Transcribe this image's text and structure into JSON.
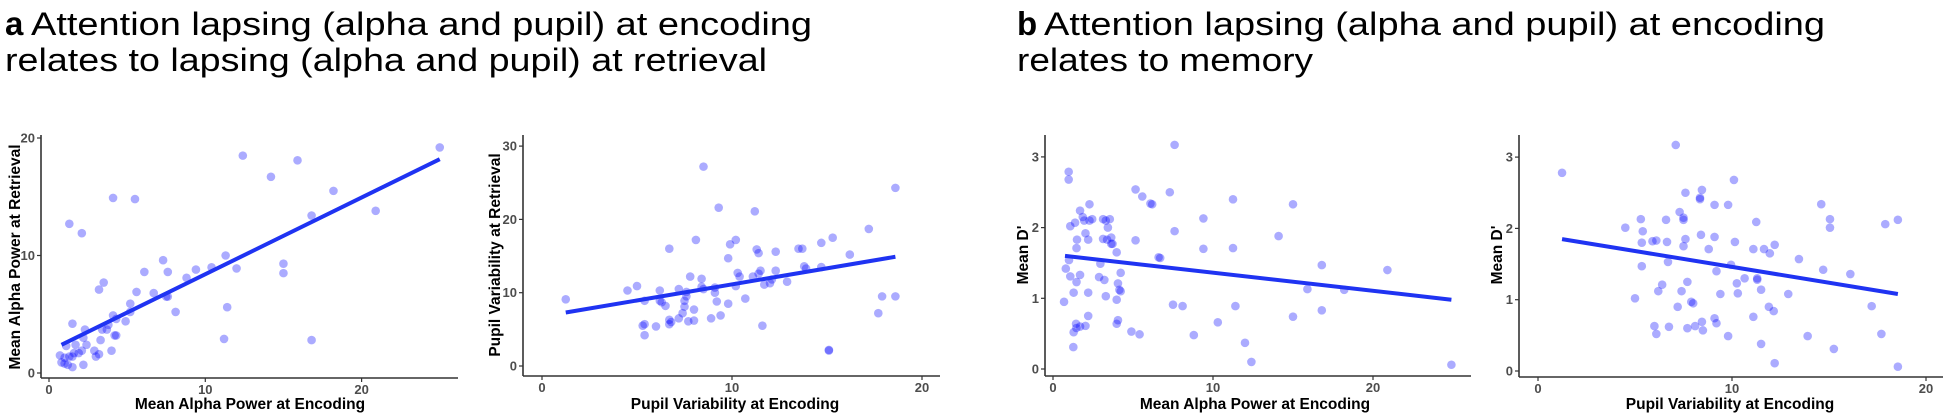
{
  "panel_a": {
    "letter": "a",
    "title_line1": "Attention lapsing (alpha and pupil) at encoding",
    "title_line2": "relates to lapsing (alpha and pupil) at retrieval"
  },
  "panel_b": {
    "letter": "b",
    "title_line1": "Attention lapsing (alpha and pupil) at encoding",
    "title_line2": "relates to memory"
  },
  "colors": {
    "points": "#0000ff",
    "fit_line": "#1f33f2",
    "axis": "#333333"
  },
  "chart_data": [
    {
      "type": "scatter",
      "id": "a1",
      "xlabel": "Mean Alpha Power at Encoding",
      "ylabel": "Mean Alpha Power at Retrieval",
      "xlim": [
        -0.5,
        27
      ],
      "ylim": [
        -0.4,
        20.6
      ],
      "xticks": [
        "0",
        "10",
        "20"
      ],
      "xtick_values": [
        0,
        10,
        20
      ],
      "yticks": [
        "0",
        "10",
        "20"
      ],
      "ytick_values": [
        0,
        10,
        20
      ],
      "fit_line": [
        [
          0.8,
          2.4
        ],
        [
          25.0,
          18.2
        ]
      ],
      "points": [
        [
          12.4,
          18.5
        ],
        [
          15.9,
          18.1
        ],
        [
          14.2,
          16.7
        ],
        [
          4.1,
          14.9
        ],
        [
          5.5,
          14.8
        ],
        [
          18.2,
          15.5
        ],
        [
          20.9,
          13.8
        ],
        [
          16.8,
          13.4
        ],
        [
          1.3,
          12.7
        ],
        [
          2.1,
          11.9
        ],
        [
          11.3,
          10.0
        ],
        [
          7.3,
          9.6
        ],
        [
          10.4,
          9.0
        ],
        [
          12.0,
          8.9
        ],
        [
          15.0,
          9.3
        ],
        [
          15.0,
          8.5
        ],
        [
          9.4,
          8.8
        ],
        [
          6.1,
          8.6
        ],
        [
          7.6,
          8.6
        ],
        [
          8.8,
          8.1
        ],
        [
          3.5,
          7.7
        ],
        [
          3.2,
          7.1
        ],
        [
          5.6,
          6.9
        ],
        [
          6.7,
          6.8
        ],
        [
          7.5,
          6.5
        ],
        [
          7.6,
          6.5
        ],
        [
          8.1,
          5.2
        ],
        [
          11.4,
          5.6
        ],
        [
          5.2,
          5.9
        ],
        [
          5.2,
          5.2
        ],
        [
          4.9,
          4.4
        ],
        [
          4.1,
          4.9
        ],
        [
          4.3,
          4.6
        ],
        [
          3.8,
          4.1
        ],
        [
          3.4,
          3.7
        ],
        [
          3.7,
          3.7
        ],
        [
          2.3,
          3.7
        ],
        [
          1.5,
          4.2
        ],
        [
          4.2,
          3.2
        ],
        [
          4.3,
          3.2
        ],
        [
          3.3,
          2.8
        ],
        [
          2.2,
          3.0
        ],
        [
          2.4,
          2.4
        ],
        [
          1.7,
          2.4
        ],
        [
          1.1,
          2.3
        ],
        [
          11.2,
          2.9
        ],
        [
          16.8,
          2.8
        ],
        [
          4.0,
          1.9
        ],
        [
          2.9,
          1.9
        ],
        [
          3.2,
          1.6
        ],
        [
          3.0,
          1.4
        ],
        [
          2.1,
          1.9
        ],
        [
          1.9,
          1.7
        ],
        [
          1.6,
          1.7
        ],
        [
          1.5,
          1.4
        ],
        [
          1.3,
          1.4
        ],
        [
          0.7,
          1.5
        ],
        [
          1.0,
          1.3
        ],
        [
          0.8,
          0.9
        ],
        [
          1.0,
          0.8
        ],
        [
          1.2,
          0.7
        ],
        [
          1.5,
          0.5
        ],
        [
          2.2,
          0.7
        ],
        [
          25.0,
          19.2
        ]
      ]
    },
    {
      "type": "scatter",
      "id": "a2",
      "xlabel": "Pupil Variability at Encoding",
      "ylabel": "Pupil Variability at Retrieval",
      "xlim": [
        -1,
        21
      ],
      "ylim": [
        -1.5,
        31.5
      ],
      "xticks": [
        "0",
        "10",
        "20"
      ],
      "xtick_values": [
        0,
        10,
        20
      ],
      "yticks": [
        "0",
        "10",
        "20",
        "30"
      ],
      "ytick_values": [
        0,
        10,
        20,
        30
      ],
      "fit_line": [
        [
          1.25,
          7.3
        ],
        [
          18.6,
          14.9
        ]
      ],
      "points": [
        [
          1.25,
          9.1
        ],
        [
          4.5,
          10.3
        ],
        [
          5.0,
          10.9
        ],
        [
          5.4,
          8.9
        ],
        [
          5.3,
          5.5
        ],
        [
          5.4,
          5.7
        ],
        [
          5.4,
          4.2
        ],
        [
          6.0,
          5.4
        ],
        [
          6.2,
          10.3
        ],
        [
          6.2,
          8.9
        ],
        [
          6.3,
          8.7
        ],
        [
          6.5,
          8.2
        ],
        [
          6.7,
          16.0
        ],
        [
          6.7,
          6.3
        ],
        [
          6.7,
          5.7
        ],
        [
          6.8,
          6.0
        ],
        [
          7.2,
          10.5
        ],
        [
          7.2,
          6.5
        ],
        [
          7.4,
          7.2
        ],
        [
          7.5,
          8.1
        ],
        [
          7.5,
          8.9
        ],
        [
          7.6,
          9.5
        ],
        [
          7.6,
          10.1
        ],
        [
          7.7,
          6.1
        ],
        [
          7.8,
          12.2
        ],
        [
          8.0,
          6.2
        ],
        [
          8.0,
          7.7
        ],
        [
          8.1,
          17.2
        ],
        [
          8.4,
          11.9
        ],
        [
          8.4,
          10.8
        ],
        [
          8.5,
          27.2
        ],
        [
          8.5,
          10.5
        ],
        [
          8.9,
          6.5
        ],
        [
          9.1,
          10.7
        ],
        [
          9.1,
          10.0
        ],
        [
          9.2,
          8.8
        ],
        [
          9.3,
          21.6
        ],
        [
          9.4,
          6.9
        ],
        [
          9.8,
          14.7
        ],
        [
          9.8,
          8.5
        ],
        [
          9.9,
          16.6
        ],
        [
          10.2,
          17.2
        ],
        [
          10.2,
          10.9
        ],
        [
          10.3,
          12.7
        ],
        [
          10.4,
          12.2
        ],
        [
          10.7,
          9.2
        ],
        [
          11.1,
          12.2
        ],
        [
          11.2,
          21.1
        ],
        [
          11.3,
          15.9
        ],
        [
          11.4,
          15.4
        ],
        [
          11.4,
          12.6
        ],
        [
          11.5,
          13.0
        ],
        [
          11.6,
          5.5
        ],
        [
          11.7,
          11.1
        ],
        [
          12.0,
          11.3
        ],
        [
          12.1,
          11.8
        ],
        [
          12.3,
          15.6
        ],
        [
          12.3,
          13.0
        ],
        [
          12.9,
          11.5
        ],
        [
          13.5,
          16.0
        ],
        [
          13.9,
          13.3
        ],
        [
          14.7,
          16.8
        ],
        [
          18.6,
          24.3
        ],
        [
          17.2,
          18.7
        ],
        [
          15.3,
          17.5
        ],
        [
          16.2,
          15.2
        ],
        [
          13.8,
          13.6
        ],
        [
          14.7,
          13.5
        ],
        [
          17.9,
          9.5
        ],
        [
          18.6,
          9.5
        ],
        [
          17.7,
          7.2
        ],
        [
          15.1,
          2.2
        ],
        [
          15.1,
          2.1
        ],
        [
          13.7,
          16.0
        ]
      ]
    },
    {
      "type": "scatter",
      "id": "b1",
      "xlabel": "Mean Alpha Power at Encoding",
      "ylabel": "Mean D'",
      "xlim": [
        -0.5,
        26
      ],
      "ylim": [
        -0.1,
        3.3
      ],
      "xticks": [
        "0",
        "10",
        "20"
      ],
      "xtick_values": [
        0,
        10,
        20
      ],
      "yticks": [
        "0",
        "1",
        "2",
        "3"
      ],
      "ytick_values": [
        0,
        1,
        2,
        3
      ],
      "fit_line": [
        [
          0.75,
          1.6
        ],
        [
          24.9,
          0.98
        ]
      ],
      "points": [
        [
          0.98,
          2.79
        ],
        [
          0.98,
          2.68
        ],
        [
          0.69,
          0.95
        ],
        [
          0.8,
          1.42
        ],
        [
          1.0,
          1.54
        ],
        [
          1.08,
          1.31
        ],
        [
          1.08,
          2.02
        ],
        [
          1.38,
          2.07
        ],
        [
          1.29,
          1.08
        ],
        [
          1.29,
          0.52
        ],
        [
          1.27,
          0.31
        ],
        [
          1.44,
          0.64
        ],
        [
          1.46,
          0.58
        ],
        [
          1.69,
          0.6
        ],
        [
          1.47,
          1.71
        ],
        [
          1.5,
          1.83
        ],
        [
          1.47,
          1.23
        ],
        [
          1.69,
          1.33
        ],
        [
          1.69,
          2.24
        ],
        [
          1.86,
          2.15
        ],
        [
          1.95,
          2.1
        ],
        [
          2.03,
          1.92
        ],
        [
          2.2,
          1.83
        ],
        [
          2.2,
          1.08
        ],
        [
          2.2,
          0.75
        ],
        [
          2.03,
          0.61
        ],
        [
          2.28,
          2.33
        ],
        [
          2.28,
          2.1
        ],
        [
          2.45,
          2.12
        ],
        [
          2.88,
          1.3
        ],
        [
          2.96,
          1.49
        ],
        [
          3.13,
          2.12
        ],
        [
          3.13,
          1.84
        ],
        [
          3.21,
          1.26
        ],
        [
          3.3,
          1.03
        ],
        [
          3.3,
          2.1
        ],
        [
          3.38,
          1.83
        ],
        [
          3.43,
          2.0
        ],
        [
          3.55,
          2.12
        ],
        [
          3.64,
          1.86
        ],
        [
          3.64,
          1.77
        ],
        [
          3.72,
          1.77
        ],
        [
          3.98,
          1.65
        ],
        [
          3.98,
          0.98
        ],
        [
          4.06,
          1.21
        ],
        [
          4.15,
          1.12
        ],
        [
          4.23,
          1.1
        ],
        [
          4.23,
          1.36
        ],
        [
          4.06,
          0.69
        ],
        [
          3.98,
          0.64
        ],
        [
          4.9,
          0.53
        ],
        [
          5.41,
          0.49
        ],
        [
          5.16,
          2.54
        ],
        [
          5.58,
          2.44
        ],
        [
          6.09,
          2.34
        ],
        [
          5.16,
          1.82
        ],
        [
          6.6,
          1.58
        ],
        [
          7.6,
          3.17
        ],
        [
          7.3,
          2.5
        ],
        [
          6.2,
          2.33
        ],
        [
          11.25,
          2.4
        ],
        [
          15.0,
          2.33
        ],
        [
          9.4,
          2.13
        ],
        [
          7.6,
          1.95
        ],
        [
          14.1,
          1.88
        ],
        [
          9.4,
          1.7
        ],
        [
          11.25,
          1.71
        ],
        [
          6.7,
          1.57
        ],
        [
          16.8,
          1.47
        ],
        [
          15.9,
          1.13
        ],
        [
          18.2,
          1.12
        ],
        [
          7.5,
          0.91
        ],
        [
          8.1,
          0.89
        ],
        [
          11.4,
          0.89
        ],
        [
          16.8,
          0.83
        ],
        [
          15.0,
          0.74
        ],
        [
          10.3,
          0.66
        ],
        [
          8.8,
          0.48
        ],
        [
          12.0,
          0.37
        ],
        [
          12.4,
          0.1
        ],
        [
          20.9,
          1.4
        ],
        [
          24.9,
          0.06
        ]
      ]
    },
    {
      "type": "scatter",
      "id": "b2",
      "xlabel": "Pupil Variability at Encoding",
      "ylabel": "Mean D'",
      "xlim": [
        -1,
        21
      ],
      "ylim": [
        -0.1,
        3.3
      ],
      "xticks": [
        "0",
        "10",
        "20"
      ],
      "xtick_values": [
        0,
        10,
        20
      ],
      "yticks": [
        "0",
        "1",
        "2",
        "3"
      ],
      "ytick_values": [
        0,
        1,
        2,
        3
      ],
      "fit_line": [
        [
          1.24,
          1.85
        ],
        [
          18.55,
          1.08
        ]
      ],
      "points": [
        [
          7.1,
          3.17
        ],
        [
          1.24,
          2.78
        ],
        [
          10.1,
          2.68
        ],
        [
          8.45,
          2.54
        ],
        [
          7.6,
          2.5
        ],
        [
          8.35,
          2.43
        ],
        [
          8.35,
          2.41
        ],
        [
          9.1,
          2.33
        ],
        [
          9.8,
          2.33
        ],
        [
          14.6,
          2.34
        ],
        [
          7.3,
          2.23
        ],
        [
          7.5,
          2.15
        ],
        [
          7.5,
          2.12
        ],
        [
          5.3,
          2.13
        ],
        [
          6.6,
          2.12
        ],
        [
          15.05,
          2.13
        ],
        [
          18.55,
          2.12
        ],
        [
          11.25,
          2.09
        ],
        [
          17.9,
          2.06
        ],
        [
          4.5,
          2.01
        ],
        [
          15.05,
          2.01
        ],
        [
          5.4,
          1.96
        ],
        [
          8.4,
          1.91
        ],
        [
          9.1,
          1.88
        ],
        [
          7.6,
          1.85
        ],
        [
          5.9,
          1.82
        ],
        [
          6.1,
          1.83
        ],
        [
          6.65,
          1.81
        ],
        [
          5.35,
          1.8
        ],
        [
          10.15,
          1.81
        ],
        [
          12.2,
          1.77
        ],
        [
          7.5,
          1.75
        ],
        [
          8.8,
          1.71
        ],
        [
          11.1,
          1.71
        ],
        [
          11.65,
          1.71
        ],
        [
          11.95,
          1.65
        ],
        [
          13.45,
          1.57
        ],
        [
          6.7,
          1.53
        ],
        [
          9.95,
          1.49
        ],
        [
          5.35,
          1.47
        ],
        [
          14.7,
          1.42
        ],
        [
          9.2,
          1.4
        ],
        [
          16.1,
          1.36
        ],
        [
          10.65,
          1.3
        ],
        [
          11.3,
          1.3
        ],
        [
          11.3,
          1.28
        ],
        [
          7.7,
          1.25
        ],
        [
          10.25,
          1.23
        ],
        [
          6.4,
          1.21
        ],
        [
          7.4,
          1.12
        ],
        [
          6.2,
          1.12
        ],
        [
          11.5,
          1.14
        ],
        [
          10.3,
          1.09
        ],
        [
          9.4,
          1.08
        ],
        [
          12.9,
          1.08
        ],
        [
          5.0,
          1.02
        ],
        [
          7.9,
          0.97
        ],
        [
          8.0,
          0.95
        ],
        [
          17.2,
          0.91
        ],
        [
          7.2,
          0.9
        ],
        [
          11.9,
          0.9
        ],
        [
          12.15,
          0.84
        ],
        [
          11.1,
          0.76
        ],
        [
          9.1,
          0.74
        ],
        [
          9.2,
          0.67
        ],
        [
          8.45,
          0.69
        ],
        [
          6.0,
          0.63
        ],
        [
          6.75,
          0.62
        ],
        [
          7.7,
          0.6
        ],
        [
          8.1,
          0.63
        ],
        [
          8.5,
          0.57
        ],
        [
          6.1,
          0.52
        ],
        [
          9.8,
          0.49
        ],
        [
          13.9,
          0.49
        ],
        [
          17.7,
          0.52
        ],
        [
          11.5,
          0.38
        ],
        [
          15.25,
          0.31
        ],
        [
          12.2,
          0.11
        ],
        [
          18.55,
          0.06
        ]
      ]
    }
  ]
}
